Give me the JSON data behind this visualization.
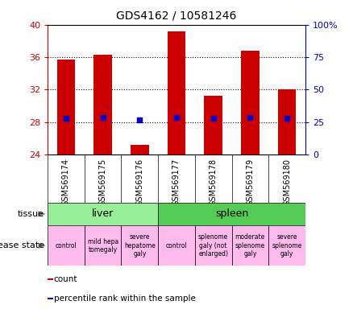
{
  "title": "GDS4162 / 10581246",
  "samples": [
    "GSM569174",
    "GSM569175",
    "GSM569176",
    "GSM569177",
    "GSM569178",
    "GSM569179",
    "GSM569180"
  ],
  "counts": [
    35.7,
    36.3,
    25.2,
    39.2,
    31.2,
    36.8,
    32.0
  ],
  "percentile_ranks": [
    28.1,
    28.6,
    26.5,
    28.7,
    27.6,
    28.7,
    28.1
  ],
  "ylim_left": [
    24,
    40
  ],
  "ylim_right": [
    0,
    100
  ],
  "left_yticks": [
    24,
    28,
    32,
    36,
    40
  ],
  "right_yticks": [
    0,
    25,
    50,
    75,
    100
  ],
  "right_yticklabels": [
    "0",
    "25",
    "50",
    "75",
    "100%"
  ],
  "bar_color": "#cc0000",
  "dot_color": "#0000cc",
  "bar_width": 0.5,
  "tissue_groups": [
    {
      "label": "liver",
      "start": 0,
      "end": 3,
      "color": "#99ee99"
    },
    {
      "label": "spleen",
      "start": 3,
      "end": 7,
      "color": "#55cc55"
    }
  ],
  "disease_states": [
    {
      "label": "control",
      "start": 0,
      "end": 1,
      "color": "#ffbbee"
    },
    {
      "label": "mild hepa\ntomegaly",
      "start": 1,
      "end": 2,
      "color": "#ffbbee"
    },
    {
      "label": "severe\nhepatome\ngaly",
      "start": 2,
      "end": 3,
      "color": "#ffbbee"
    },
    {
      "label": "control",
      "start": 3,
      "end": 4,
      "color": "#ffbbee"
    },
    {
      "label": "splenome\ngaly (not\nenlarged)",
      "start": 4,
      "end": 5,
      "color": "#ffbbee"
    },
    {
      "label": "moderate\nsplenome\ngaly",
      "start": 5,
      "end": 6,
      "color": "#ffbbee"
    },
    {
      "label": "severe\nsplenome\ngaly",
      "start": 6,
      "end": 7,
      "color": "#ffbbee"
    }
  ],
  "legend_items": [
    {
      "label": "count",
      "color": "#cc0000"
    },
    {
      "label": "percentile rank within the sample",
      "color": "#0000cc"
    }
  ],
  "grid_color": "#000000",
  "axis_color_left": "#cc0000",
  "axis_color_right": "#0000cc",
  "xtick_bg_color": "#cccccc",
  "background_color": "#ffffff",
  "label_arrow_color": "#888888",
  "border_color": "#000000"
}
